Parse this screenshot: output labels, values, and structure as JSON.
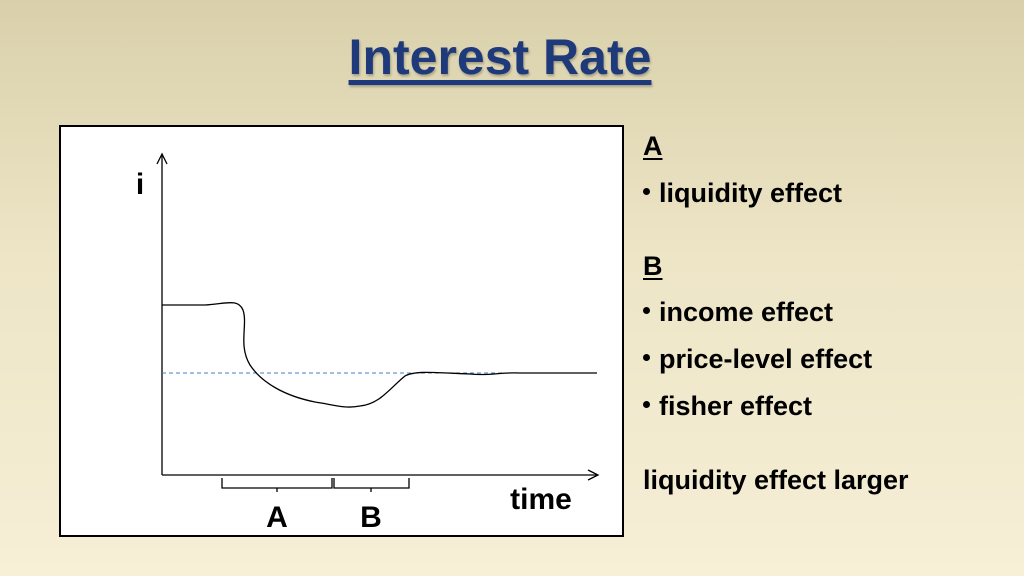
{
  "title": "Interest Rate",
  "diagram": {
    "y_axis_label": "i",
    "x_axis_label": "time",
    "periods": [
      "A",
      "B"
    ]
  },
  "notes": [
    {
      "heading": "A",
      "items": [
        "liquidity effect"
      ]
    },
    {
      "heading": "B",
      "items": [
        "income effect",
        "price-level effect",
        "fisher effect"
      ]
    }
  ],
  "conclusion": "liquidity effect larger"
}
